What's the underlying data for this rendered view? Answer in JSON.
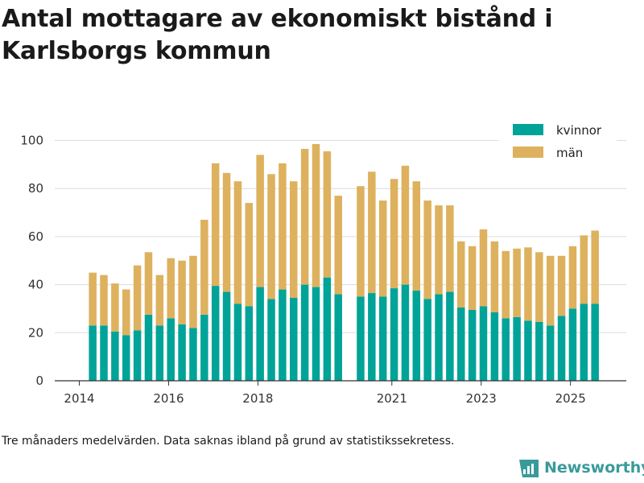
{
  "title": "Antal mottagare av ekonomiskt bistånd i Karlsborgs kommun",
  "caption": "Tre månaders medelvärden. Data saknas ibland på grund av statistikssekretess.",
  "brand": "Newsworthy",
  "chart_data": {
    "type": "bar",
    "stacked": true,
    "x_domain": [
      2013.45,
      2026.25
    ],
    "ylim": [
      0,
      100
    ],
    "yticks": [
      0,
      20,
      40,
      60,
      80,
      100
    ],
    "xticks": [
      {
        "value": 2014.0,
        "label": "2014"
      },
      {
        "value": 2016.0,
        "label": "2016"
      },
      {
        "value": 2018.0,
        "label": "2018"
      },
      {
        "value": 2021.0,
        "label": "2021"
      },
      {
        "value": 2023.0,
        "label": "2023"
      },
      {
        "value": 2025.0,
        "label": "2025"
      }
    ],
    "legend": {
      "position": "top-right"
    },
    "x": [
      2014.3,
      2014.55,
      2014.8,
      2015.05,
      2015.3,
      2015.55,
      2015.8,
      2016.05,
      2016.3,
      2016.55,
      2016.8,
      2017.05,
      2017.3,
      2017.55,
      2017.8,
      2018.05,
      2018.3,
      2018.55,
      2018.8,
      2019.05,
      2019.3,
      2019.55,
      2019.8,
      2020.3,
      2020.55,
      2020.8,
      2021.05,
      2021.3,
      2021.55,
      2021.8,
      2022.05,
      2022.3,
      2022.55,
      2022.8,
      2023.05,
      2023.3,
      2023.55,
      2023.8,
      2024.05,
      2024.3,
      2024.55,
      2024.8,
      2025.05,
      2025.3,
      2025.55
    ],
    "series": [
      {
        "name": "kvinnor",
        "color": "#00a398",
        "values": [
          23,
          23,
          20.5,
          19,
          21,
          27.5,
          23,
          26,
          23.5,
          22,
          27.5,
          39.5,
          37,
          32,
          31,
          39,
          34,
          38,
          34.5,
          40,
          39,
          43,
          36,
          35,
          36.5,
          35,
          38.5,
          40,
          37.5,
          34,
          36,
          37,
          30.5,
          29.5,
          31,
          28.5,
          26,
          26.5,
          25,
          24.5,
          23,
          27,
          30,
          32,
          32
        ]
      },
      {
        "name": "män",
        "color": "#ddb15e",
        "values": [
          22,
          21,
          20,
          19,
          27,
          26,
          21,
          25,
          26.5,
          30,
          39.5,
          51,
          49.5,
          51,
          43,
          55,
          52,
          52.5,
          48.5,
          56.5,
          59.5,
          52.5,
          41,
          46,
          50.5,
          40,
          45.5,
          49.5,
          45.5,
          41,
          37,
          36,
          27.5,
          26.5,
          32,
          29.5,
          28,
          28.5,
          30.5,
          29,
          29,
          25,
          26,
          28.5,
          30.5
        ]
      }
    ]
  }
}
